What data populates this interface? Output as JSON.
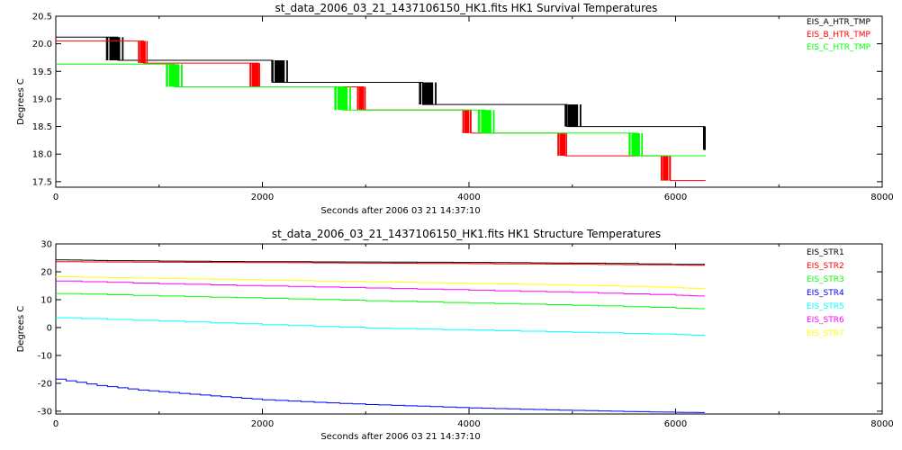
{
  "chart_data": [
    {
      "type": "line",
      "title": "st_data_2006_03_21_1437106150_HK1.fits HK1 Survival Temperatures",
      "xlabel": "Seconds after 2006 03 21 14:37:10",
      "ylabel": "Degrees C",
      "xlim": [
        0,
        8000
      ],
      "ylim": [
        17.4,
        20.5
      ],
      "xticks": [
        0,
        2000,
        4000,
        6000,
        8000
      ],
      "yticks": [
        17.5,
        18.0,
        18.5,
        19.0,
        19.5,
        20.0,
        20.5
      ],
      "ytick_labels": [
        "17.5",
        "18.0",
        "18.5",
        "19.0",
        "19.5",
        "20.0",
        "20.5"
      ],
      "xtick_labels": [
        "0",
        "2000",
        "4000",
        "6000",
        "8000"
      ],
      "legend_position": "top-right",
      "series": [
        {
          "name": "EIS_A_HTR_TMP",
          "color": "#000000",
          "levels": [
            {
              "x": [
                0,
                600
              ],
              "y": 20.12
            },
            {
              "x": [
                600,
                2100
              ],
              "y": 19.7
            },
            {
              "x": [
                2100,
                3550
              ],
              "y": 19.3
            },
            {
              "x": [
                3550,
                4950
              ],
              "y": 18.9
            },
            {
              "x": [
                4950,
                6280
              ],
              "y": 18.5
            },
            {
              "x": [
                6280,
                6290
              ],
              "y": 18.08
            }
          ],
          "toggle_bands": [
            {
              "x": [
                490,
                680
              ],
              "y": [
                19.7,
                20.12
              ]
            },
            {
              "x": [
                2090,
                2270
              ],
              "y": [
                19.3,
                19.7
              ]
            },
            {
              "x": [
                3520,
                3710
              ],
              "y": [
                18.9,
                19.3
              ]
            },
            {
              "x": [
                4930,
                5110
              ],
              "y": [
                18.5,
                18.9
              ]
            },
            {
              "x": [
                6270,
                6290
              ],
              "y": [
                18.08,
                18.5
              ]
            }
          ]
        },
        {
          "name": "EIS_B_HTR_TMP",
          "color": "#ff0000",
          "levels": [
            {
              "x": [
                0,
                850
              ],
              "y": 20.05
            },
            {
              "x": [
                850,
                1960
              ],
              "y": 19.65
            },
            {
              "x": [
                1960,
                2980
              ],
              "y": 19.22
            },
            {
              "x": [
                2980,
                4020
              ],
              "y": 18.8
            },
            {
              "x": [
                4020,
                4930
              ],
              "y": 18.38
            },
            {
              "x": [
                4930,
                5950
              ],
              "y": 17.97
            },
            {
              "x": [
                5950,
                6290
              ],
              "y": 17.52
            }
          ],
          "toggle_bands": [
            {
              "x": [
                800,
                900
              ],
              "y": [
                19.65,
                20.05
              ]
            },
            {
              "x": [
                1880,
                1990
              ],
              "y": [
                19.22,
                19.65
              ]
            },
            {
              "x": [
                2920,
                3010
              ],
              "y": [
                18.8,
                19.22
              ]
            },
            {
              "x": [
                3940,
                4030
              ],
              "y": [
                18.38,
                18.8
              ]
            },
            {
              "x": [
                4860,
                4960
              ],
              "y": [
                17.97,
                18.38
              ]
            },
            {
              "x": [
                5860,
                5960
              ],
              "y": [
                17.52,
                17.97
              ]
            }
          ]
        },
        {
          "name": "EIS_C_HTR_TMP",
          "color": "#00ff00",
          "levels": [
            {
              "x": [
                0,
                1150
              ],
              "y": 19.63
            },
            {
              "x": [
                1150,
                2780
              ],
              "y": 19.22
            },
            {
              "x": [
                2780,
                4150
              ],
              "y": 18.8
            },
            {
              "x": [
                4150,
                5620
              ],
              "y": 18.38
            },
            {
              "x": [
                5620,
                6290
              ],
              "y": 17.97
            }
          ],
          "toggle_bands": [
            {
              "x": [
                1070,
                1250
              ],
              "y": [
                19.22,
                19.63
              ]
            },
            {
              "x": [
                2700,
                2880
              ],
              "y": [
                18.8,
                19.22
              ]
            },
            {
              "x": [
                4090,
                4270
              ],
              "y": [
                18.38,
                18.8
              ]
            },
            {
              "x": [
                5550,
                5700
              ],
              "y": [
                17.97,
                18.38
              ]
            }
          ]
        }
      ]
    },
    {
      "type": "line",
      "title": "st_data_2006_03_21_1437106150_HK1.fits HK1 Structure Temperatures",
      "xlabel": "Seconds after 2006 03 21 14:37:10",
      "ylabel": "Degrees C",
      "xlim": [
        0,
        8000
      ],
      "ylim": [
        -31,
        30
      ],
      "xticks": [
        0,
        2000,
        4000,
        6000,
        8000
      ],
      "yticks": [
        -30,
        -20,
        -10,
        0,
        10,
        20,
        30
      ],
      "ytick_labels": [
        "-30",
        "-20",
        "-10",
        "0",
        "10",
        "20",
        "30"
      ],
      "xtick_labels": [
        "0",
        "2000",
        "4000",
        "6000",
        "8000"
      ],
      "legend_position": "top-right",
      "series": [
        {
          "name": "EIS_STR1",
          "color": "#000000",
          "x": [
            0,
            500,
            1500,
            2800,
            4200,
            5000,
            6280
          ],
          "y": [
            24.3,
            24.0,
            23.7,
            23.5,
            23.3,
            23.1,
            22.5
          ]
        },
        {
          "name": "EIS_STR2",
          "color": "#ff0000",
          "x": [
            0,
            1000,
            2000,
            3000,
            4000,
            5000,
            6000,
            6280
          ],
          "y": [
            23.6,
            23.4,
            23.3,
            23.1,
            22.9,
            22.7,
            22.4,
            22.3
          ]
        },
        {
          "name": "EIS_STR3",
          "color": "#00ff00",
          "x": [
            0,
            1000,
            2000,
            3000,
            4000,
            5000,
            6000,
            6280
          ],
          "y": [
            12.2,
            11.3,
            10.5,
            9.6,
            8.8,
            8.0,
            7.0,
            6.7
          ]
        },
        {
          "name": "EIS_STR4",
          "color": "#0000ff",
          "x": [
            0,
            400,
            800,
            1200,
            1600,
            2000,
            2500,
            3000,
            3500,
            4000,
            4500,
            5000,
            5500,
            6000,
            6280
          ],
          "y": [
            -18.5,
            -20.8,
            -22.4,
            -23.6,
            -24.8,
            -25.9,
            -26.8,
            -27.6,
            -28.2,
            -28.8,
            -29.3,
            -29.7,
            -30.1,
            -30.4,
            -30.5
          ]
        },
        {
          "name": "EIS_STR5",
          "color": "#00ffff",
          "x": [
            0,
            1000,
            2000,
            3000,
            4000,
            5000,
            6000,
            6280
          ],
          "y": [
            3.5,
            2.3,
            1.0,
            -0.2,
            -0.9,
            -1.7,
            -2.5,
            -2.8
          ]
        },
        {
          "name": "EIS_STR6",
          "color": "#ff00ff",
          "x": [
            0,
            1000,
            2000,
            3000,
            4000,
            5000,
            6000,
            6280
          ],
          "y": [
            16.7,
            15.7,
            14.9,
            14.2,
            13.4,
            12.6,
            11.6,
            11.2
          ]
        },
        {
          "name": "EIS_STR7",
          "color": "#ffff00",
          "x": [
            0,
            1000,
            2000,
            3000,
            4000,
            5000,
            6000,
            6280
          ],
          "y": [
            18.2,
            17.6,
            17.0,
            16.4,
            15.8,
            15.2,
            14.3,
            13.9
          ]
        }
      ]
    }
  ]
}
